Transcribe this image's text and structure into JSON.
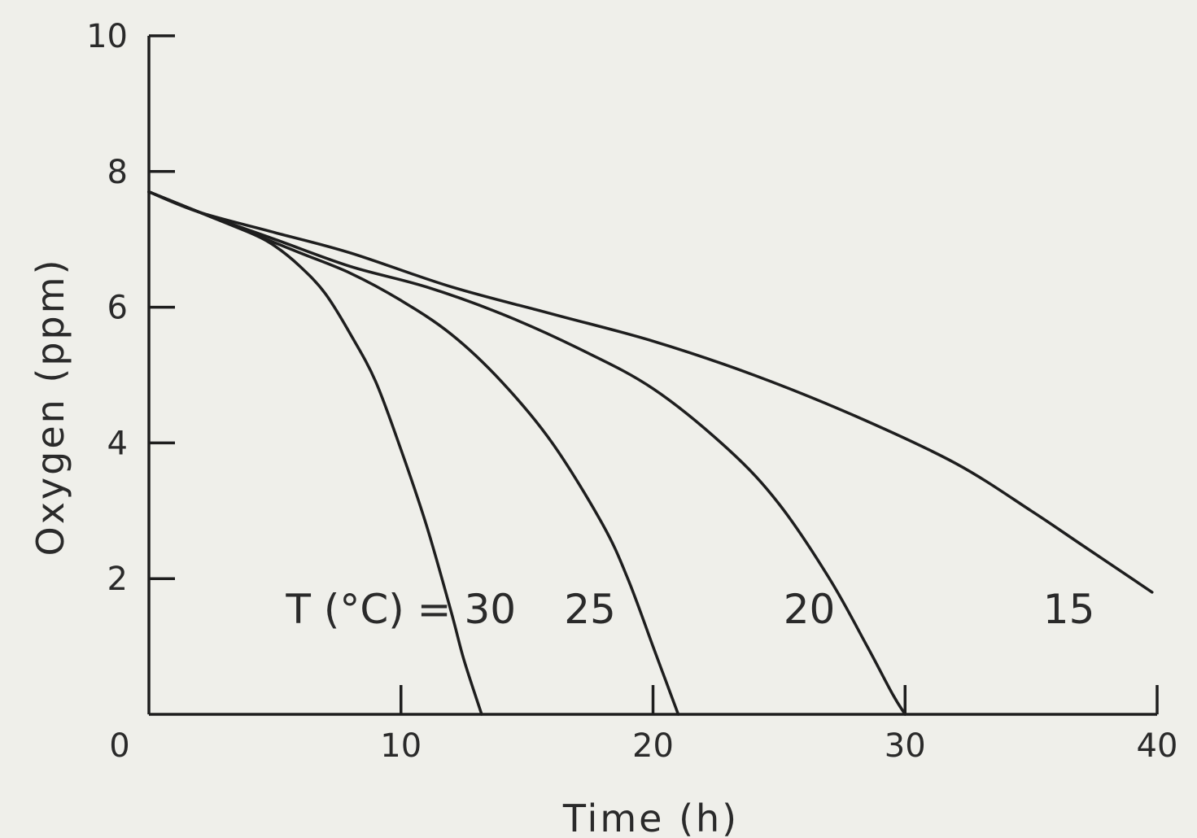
{
  "chart_data": {
    "type": "line",
    "xlabel": "Time (h)",
    "ylabel": "Oxygen (ppm)",
    "xlim": [
      0,
      40
    ],
    "ylim": [
      0,
      10
    ],
    "x_ticks": [
      0,
      10,
      20,
      30,
      40
    ],
    "y_ticks": [
      0,
      2,
      4,
      6,
      8,
      10
    ],
    "grid": false,
    "legend_prefix": "T (°C) =",
    "series": [
      {
        "name": "30",
        "label_x": 10,
        "x": [
          0,
          2,
          4,
          5,
          6,
          7,
          8,
          9,
          10,
          11,
          12,
          12.5,
          13.2
        ],
        "y": [
          7.7,
          7.4,
          7.1,
          6.9,
          6.6,
          6.2,
          5.6,
          4.9,
          3.9,
          2.8,
          1.5,
          0.8,
          0
        ]
      },
      {
        "name": "25",
        "label_x": 17.5,
        "x": [
          0,
          2,
          4,
          6,
          8,
          10,
          12,
          14,
          16,
          18,
          19,
          20,
          20.5,
          21
        ],
        "y": [
          7.7,
          7.4,
          7.1,
          6.8,
          6.5,
          6.1,
          5.6,
          4.9,
          4.0,
          2.8,
          2.0,
          1.0,
          0.5,
          0
        ]
      },
      {
        "name": "20",
        "label_x": 26.2,
        "x": [
          0,
          2,
          5,
          8,
          11,
          14,
          17,
          20,
          23,
          25,
          27,
          28.5,
          29.5,
          30
        ],
        "y": [
          7.7,
          7.4,
          7.0,
          6.6,
          6.3,
          5.9,
          5.4,
          4.8,
          3.9,
          3.1,
          2.0,
          1.0,
          0.3,
          0
        ]
      },
      {
        "name": "15",
        "label_x": 36.5,
        "x": [
          0,
          2,
          5,
          8,
          12,
          16,
          20,
          24,
          28,
          32,
          35,
          37,
          39.8
        ],
        "y": [
          7.7,
          7.4,
          7.1,
          6.8,
          6.3,
          5.9,
          5.5,
          5.0,
          4.4,
          3.7,
          3.0,
          2.5,
          1.8
        ]
      }
    ]
  }
}
